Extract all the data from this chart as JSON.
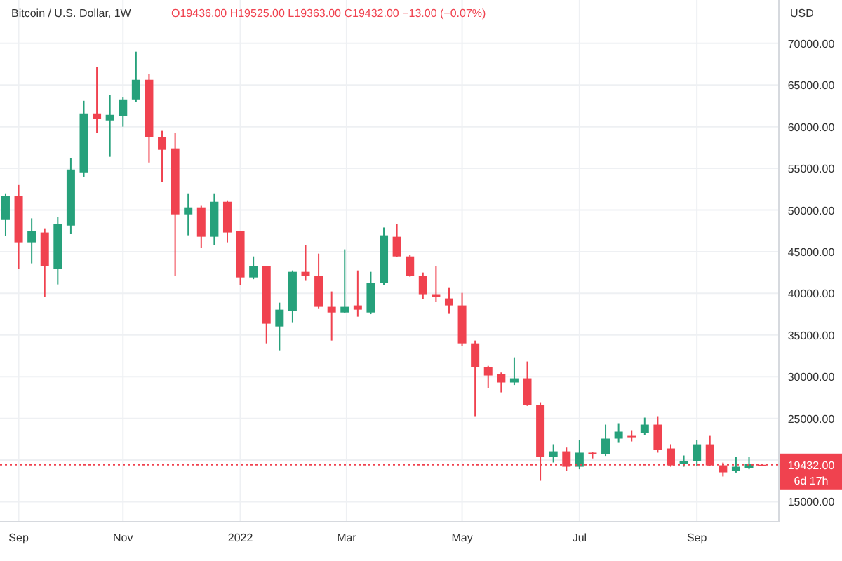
{
  "chart_data": {
    "type": "candlestick",
    "title": "Bitcoin / U.S. Dollar, 1W",
    "subtitle": "O19436.00 H19525.00 L19363.00 C19432.00 −13.00 (−0.07%)",
    "ylabel": "USD",
    "x": [
      "2021-08-30",
      "2021-09-06",
      "2021-09-13",
      "2021-09-20",
      "2021-09-27",
      "2021-10-04",
      "2021-10-11",
      "2021-10-18",
      "2021-10-25",
      "2021-11-01",
      "2021-11-08",
      "2021-11-15",
      "2021-11-22",
      "2021-11-29",
      "2021-12-06",
      "2021-12-13",
      "2021-12-20",
      "2021-12-27",
      "2022-01-03",
      "2022-01-10",
      "2022-01-17",
      "2022-01-24",
      "2022-01-31",
      "2022-02-07",
      "2022-02-14",
      "2022-02-21",
      "2022-02-28",
      "2022-03-07",
      "2022-03-14",
      "2022-03-21",
      "2022-03-28",
      "2022-04-04",
      "2022-04-11",
      "2022-04-18",
      "2022-04-25",
      "2022-05-02",
      "2022-05-09",
      "2022-05-16",
      "2022-05-23",
      "2022-05-30",
      "2022-06-06",
      "2022-06-13",
      "2022-06-20",
      "2022-06-27",
      "2022-07-04",
      "2022-07-11",
      "2022-07-18",
      "2022-07-25",
      "2022-08-01",
      "2022-08-08",
      "2022-08-15",
      "2022-08-22",
      "2022-08-29",
      "2022-09-05",
      "2022-09-12",
      "2022-09-19",
      "2022-09-26",
      "2022-10-03",
      "2022-10-10"
    ],
    "ohlc": [
      [
        48800,
        52000,
        46900,
        51700
      ],
      [
        51670,
        53000,
        42920,
        46120
      ],
      [
        46120,
        49000,
        43600,
        47470
      ],
      [
        47300,
        47800,
        39560,
        43260
      ],
      [
        42920,
        49140,
        41070,
        48300
      ],
      [
        48130,
        56200,
        47100,
        54860
      ],
      [
        54520,
        63100,
        54000,
        61590
      ],
      [
        61590,
        67140,
        59240,
        60920
      ],
      [
        60750,
        63780,
        56380,
        61420
      ],
      [
        61250,
        63500,
        60000,
        63270
      ],
      [
        63270,
        69000,
        63000,
        65630
      ],
      [
        65630,
        66300,
        55700,
        58730
      ],
      [
        58730,
        59500,
        53350,
        57220
      ],
      [
        57390,
        59240,
        42080,
        49480
      ],
      [
        49480,
        52000,
        46960,
        50320
      ],
      [
        50320,
        50500,
        45440,
        46790
      ],
      [
        46790,
        52000,
        45780,
        50990
      ],
      [
        50990,
        51160,
        46120,
        47300
      ],
      [
        47470,
        47500,
        41000,
        41910
      ],
      [
        41910,
        44430,
        41700,
        43260
      ],
      [
        43260,
        43300,
        34000,
        36360
      ],
      [
        36020,
        38880,
        33160,
        38040
      ],
      [
        37870,
        42750,
        36530,
        42580
      ],
      [
        42580,
        45780,
        41500,
        42080
      ],
      [
        42080,
        44770,
        38200,
        38380
      ],
      [
        38380,
        40230,
        34340,
        37700
      ],
      [
        37700,
        45280,
        37600,
        38380
      ],
      [
        38550,
        42750,
        37200,
        38040
      ],
      [
        37700,
        42580,
        37500,
        41240
      ],
      [
        41240,
        47900,
        41000,
        46960
      ],
      [
        46790,
        48300,
        44400,
        44430
      ],
      [
        44430,
        44600,
        42000,
        42080
      ],
      [
        42080,
        42500,
        39300,
        39900
      ],
      [
        39900,
        43260,
        39000,
        39560
      ],
      [
        39390,
        40730,
        37540,
        38550
      ],
      [
        38550,
        40060,
        33700,
        34000
      ],
      [
        34000,
        34340,
        25260,
        31150
      ],
      [
        31150,
        31300,
        28620,
        30140
      ],
      [
        30300,
        30500,
        28120,
        29300
      ],
      [
        29300,
        32320,
        29000,
        29800
      ],
      [
        29800,
        31820,
        26500,
        26600
      ],
      [
        26600,
        26940,
        17520,
        20380
      ],
      [
        20380,
        21900,
        19710,
        21050
      ],
      [
        21050,
        21500,
        18700,
        19200
      ],
      [
        19200,
        22400,
        18900,
        20890
      ],
      [
        20890,
        21000,
        20200,
        20720
      ],
      [
        20720,
        24250,
        20500,
        22570
      ],
      [
        22570,
        24420,
        22060,
        23410
      ],
      [
        22900,
        23580,
        22230,
        22740
      ],
      [
        23240,
        25090,
        23000,
        24250
      ],
      [
        24250,
        25260,
        20890,
        21220
      ],
      [
        21390,
        21900,
        19200,
        19370
      ],
      [
        19540,
        20550,
        19200,
        19870
      ],
      [
        19870,
        22400,
        19300,
        21890
      ],
      [
        21890,
        22900,
        19300,
        19370
      ],
      [
        19370,
        19700,
        18030,
        18530
      ],
      [
        18700,
        20380,
        18500,
        19200
      ],
      [
        19040,
        20380,
        18900,
        19540
      ],
      [
        19436,
        19525,
        19363,
        19432
      ]
    ],
    "colors": [
      "#26a17b",
      "#f0424f",
      "#26a17b",
      "#f0424f",
      "#26a17b",
      "#26a17b",
      "#26a17b",
      "#f0424f",
      "#26a17b",
      "#26a17b",
      "#26a17b",
      "#f0424f",
      "#f0424f",
      "#f0424f",
      "#26a17b",
      "#f0424f",
      "#26a17b",
      "#f0424f",
      "#f0424f",
      "#26a17b",
      "#f0424f",
      "#26a17b",
      "#26a17b",
      "#f0424f",
      "#f0424f",
      "#f0424f",
      "#26a17b",
      "#f0424f",
      "#26a17b",
      "#26a17b",
      "#f0424f",
      "#f0424f",
      "#f0424f",
      "#f0424f",
      "#f0424f",
      "#f0424f",
      "#f0424f",
      "#f0424f",
      "#f0424f",
      "#26a17b",
      "#f0424f",
      "#f0424f",
      "#26a17b",
      "#f0424f",
      "#26a17b",
      "#f0424f",
      "#26a17b",
      "#26a17b",
      "#f0424f",
      "#26a17b",
      "#f0424f",
      "#f0424f",
      "#26a17b",
      "#26a17b",
      "#f0424f",
      "#f0424f",
      "#26a17b",
      "#26a17b",
      "#f0424f"
    ],
    "xlim": [
      "2021-08-27",
      "2022-10-19"
    ],
    "xticks": [
      {
        "value": "2021-09-06",
        "label": "Sep"
      },
      {
        "value": "2021-11-01",
        "label": "Nov"
      },
      {
        "value": "2022-01-03",
        "label": "2022"
      },
      {
        "value": "2022-03-01",
        "label": "Mar"
      },
      {
        "value": "2022-05-02",
        "label": "May"
      },
      {
        "value": "2022-07-04",
        "label": "Jul"
      },
      {
        "value": "2022-09-05",
        "label": "Sep"
      }
    ],
    "ylim": [
      12600,
      75200
    ],
    "yticks": [
      {
        "value": 15000,
        "label": "15000.00"
      },
      {
        "value": 20000,
        "label": null
      },
      {
        "value": 25000,
        "label": "25000.00"
      },
      {
        "value": 30000,
        "label": "30000.00"
      },
      {
        "value": 35000,
        "label": "35000.00"
      },
      {
        "value": 40000,
        "label": "40000.00"
      },
      {
        "value": 45000,
        "label": "45000.00"
      },
      {
        "value": 50000,
        "label": "50000.00"
      },
      {
        "value": 55000,
        "label": "55000.00"
      },
      {
        "value": 60000,
        "label": "60000.00"
      },
      {
        "value": 65000,
        "label": "65000.00"
      },
      {
        "value": 70000,
        "label": "70000.00"
      }
    ],
    "grid": true,
    "ref_lines": [
      {
        "axis": "y",
        "value": 19432,
        "label": "19432.00",
        "color": "#f0424f",
        "line_style": "dotted"
      }
    ],
    "annotations": [
      "6d 17h"
    ]
  }
}
